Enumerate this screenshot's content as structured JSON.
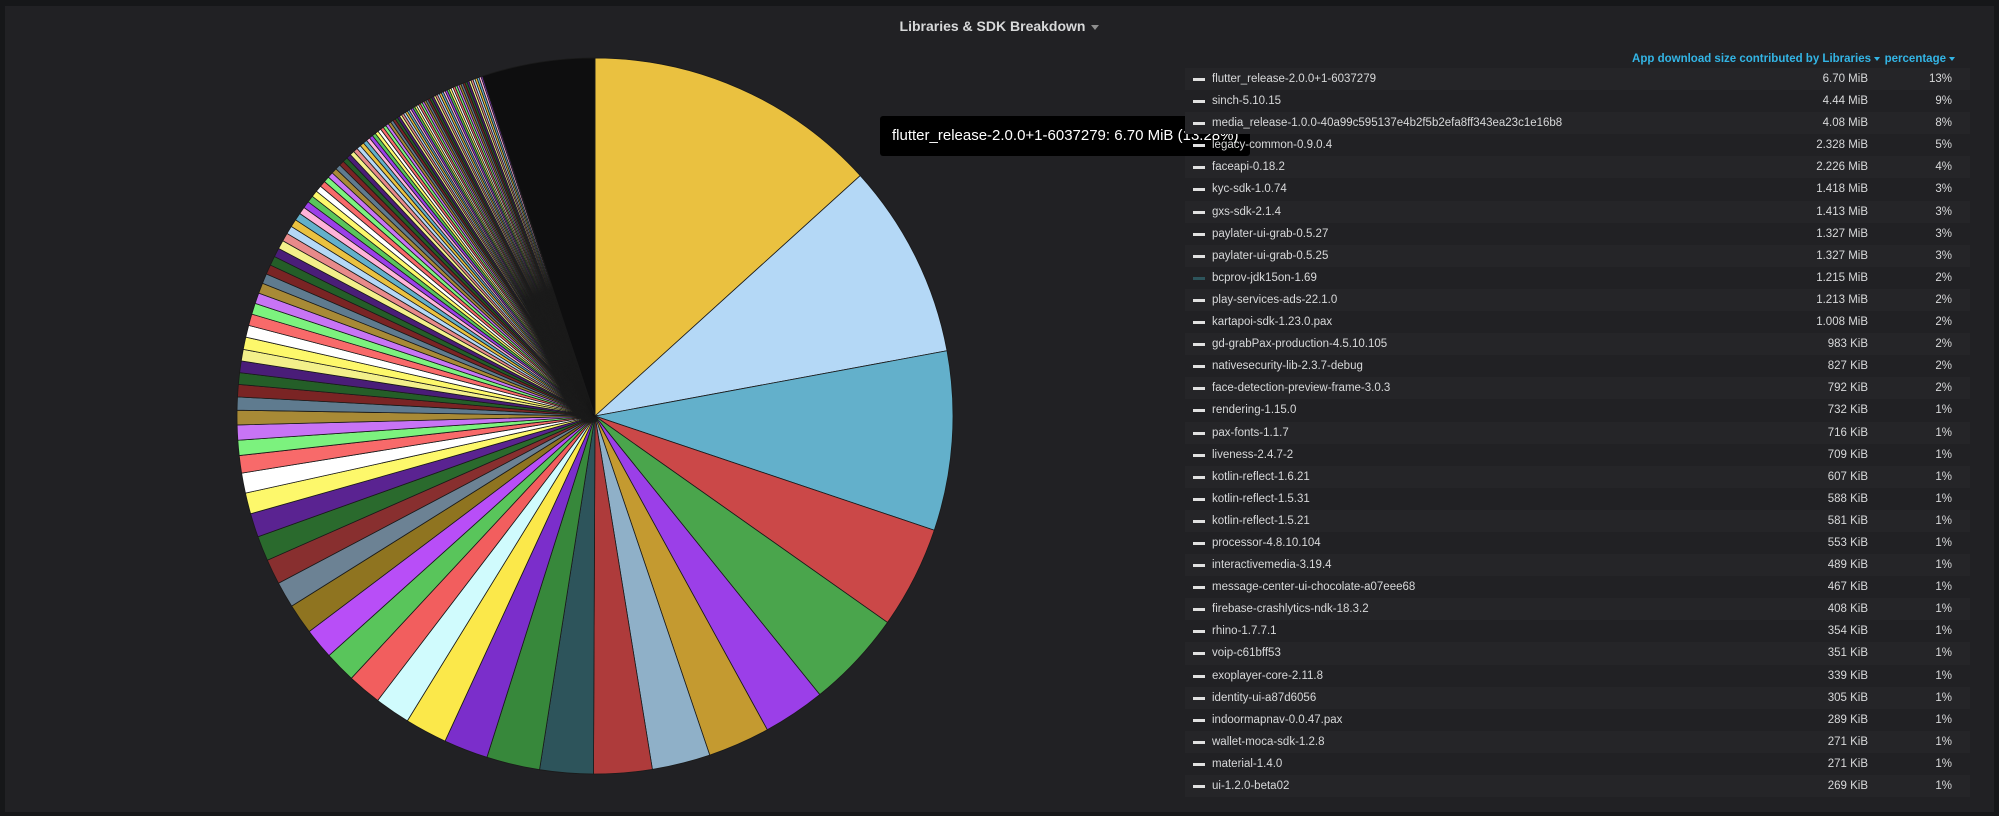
{
  "panel": {
    "title": "Libraries & SDK Breakdown"
  },
  "tooltip": {
    "text": "flutter_release-2.0.0+1-6037279: 6.70 MiB (13.28%)"
  },
  "legend_header": {
    "value_label": "App download size contributed by Libraries",
    "percent_label": "percentage"
  },
  "colors": {
    "background": "#161719",
    "panel": "#212124",
    "accent": "#33b5e5"
  },
  "chart_data": {
    "type": "pie",
    "title": "Libraries & SDK Breakdown",
    "unit": "MiB",
    "slices": [
      {
        "name": "flutter_release-2.0.0+1-6037279",
        "value": "6.70 MiB",
        "mib": 6.7,
        "percent": "13%",
        "color": "#eac140"
      },
      {
        "name": "sinch-5.10.15",
        "value": "4.44 MiB",
        "mib": 4.44,
        "percent": "9%",
        "color": "#b4d8f6"
      },
      {
        "name": "media_release-1.0.0-40a99c595137e4b2f5b2efa8ff343ea23c1e16b8",
        "value": "4.08 MiB",
        "mib": 4.08,
        "percent": "8%",
        "color": "#63b0cb"
      },
      {
        "name": "legacy-common-0.9.0.4",
        "value": "2.328 MiB",
        "mib": 2.328,
        "percent": "5%",
        "color": "#cb4848"
      },
      {
        "name": "faceapi-0.18.2",
        "value": "2.226 MiB",
        "mib": 2.226,
        "percent": "4%",
        "color": "#4aa54c"
      },
      {
        "name": "kyc-sdk-1.0.74",
        "value": "1.418 MiB",
        "mib": 1.418,
        "percent": "3%",
        "color": "#9b3fe8"
      },
      {
        "name": "gxs-sdk-2.1.4",
        "value": "1.413 MiB",
        "mib": 1.413,
        "percent": "3%",
        "color": "#c49a30"
      },
      {
        "name": "paylater-ui-grab-0.5.27",
        "value": "1.327 MiB",
        "mib": 1.327,
        "percent": "3%",
        "color": "#8fb0c8"
      },
      {
        "name": "paylater-ui-grab-0.5.25",
        "value": "1.327 MiB",
        "mib": 1.327,
        "percent": "3%",
        "color": "#ae3b3b"
      },
      {
        "name": "bcprov-jdk15on-1.69",
        "value": "1.215 MiB",
        "mib": 1.215,
        "percent": "2%",
        "color": "#2d545b"
      },
      {
        "name": "play-services-ads-22.1.0",
        "value": "1.213 MiB",
        "mib": 1.213,
        "percent": "2%",
        "color": "#37883b"
      },
      {
        "name": "kartapoi-sdk-1.23.0.pax",
        "value": "1.008 MiB",
        "mib": 1.008,
        "percent": "2%",
        "color": "#7b2ecb"
      },
      {
        "name": "gd-grabPax-production-4.5.10.105",
        "value": "983 KiB",
        "mib": 0.96,
        "percent": "2%",
        "color": "#fbe84a"
      },
      {
        "name": "nativesecurity-lib-2.3.7-debug",
        "value": "827 KiB",
        "mib": 0.808,
        "percent": "2%",
        "color": "#d0fbfd"
      },
      {
        "name": "face-detection-preview-frame-3.0.3",
        "value": "792 KiB",
        "mib": 0.773,
        "percent": "2%",
        "color": "#f25e5e"
      },
      {
        "name": "rendering-1.15.0",
        "value": "732 KiB",
        "mib": 0.715,
        "percent": "1%",
        "color": "#59c55b"
      },
      {
        "name": "pax-fonts-1.1.7",
        "value": "716 KiB",
        "mib": 0.699,
        "percent": "1%",
        "color": "#b84ef7"
      },
      {
        "name": "liveness-2.4.7-2",
        "value": "709 KiB",
        "mib": 0.692,
        "percent": "1%",
        "color": "#8f7420"
      },
      {
        "name": "kotlin-reflect-1.6.21",
        "value": "607 KiB",
        "mib": 0.593,
        "percent": "1%",
        "color": "#6c8294"
      },
      {
        "name": "kotlin-reflect-1.5.31",
        "value": "588 KiB",
        "mib": 0.574,
        "percent": "1%",
        "color": "#882f2f"
      },
      {
        "name": "kotlin-reflect-1.5.21",
        "value": "581 KiB",
        "mib": 0.567,
        "percent": "1%",
        "color": "#2a6a2d"
      },
      {
        "name": "processor-4.8.10.104",
        "value": "553 KiB",
        "mib": 0.54,
        "percent": "1%",
        "color": "#5a2391"
      },
      {
        "name": "interactivemedia-3.19.4",
        "value": "489 KiB",
        "mib": 0.478,
        "percent": "1%",
        "color": "#fdf86b"
      },
      {
        "name": "message-center-ui-chocolate-a07eee68",
        "value": "467 KiB",
        "mib": 0.456,
        "percent": "1%",
        "color": "#ffffff"
      },
      {
        "name": "firebase-crashlytics-ndk-18.3.2",
        "value": "408 KiB",
        "mib": 0.398,
        "percent": "1%",
        "color": "#f86a6a"
      },
      {
        "name": "rhino-1.7.7.1",
        "value": "354 KiB",
        "mib": 0.346,
        "percent": "1%",
        "color": "#7cf27e"
      },
      {
        "name": "voip-c61bff53",
        "value": "351 KiB",
        "mib": 0.343,
        "percent": "1%",
        "color": "#c874f5"
      },
      {
        "name": "exoplayer-core-2.11.8",
        "value": "339 KiB",
        "mib": 0.331,
        "percent": "1%",
        "color": "#a88a36"
      },
      {
        "name": "identity-ui-a87d6056",
        "value": "305 KiB",
        "mib": 0.298,
        "percent": "1%",
        "color": "#5f7b8f"
      },
      {
        "name": "indoormapnav-0.0.47.pax",
        "value": "289 KiB",
        "mib": 0.282,
        "percent": "1%",
        "color": "#7a2424"
      },
      {
        "name": "wallet-moca-sdk-1.2.8",
        "value": "271 KiB",
        "mib": 0.265,
        "percent": "1%",
        "color": "#245e28"
      },
      {
        "name": "material-1.4.0",
        "value": "271 KiB",
        "mib": 0.265,
        "percent": "1%",
        "color": "#4a1d78"
      },
      {
        "name": "ui-1.2.0-beta02",
        "value": "269 KiB",
        "mib": 0.263,
        "percent": "1%",
        "color": "#f3f08a"
      }
    ]
  }
}
